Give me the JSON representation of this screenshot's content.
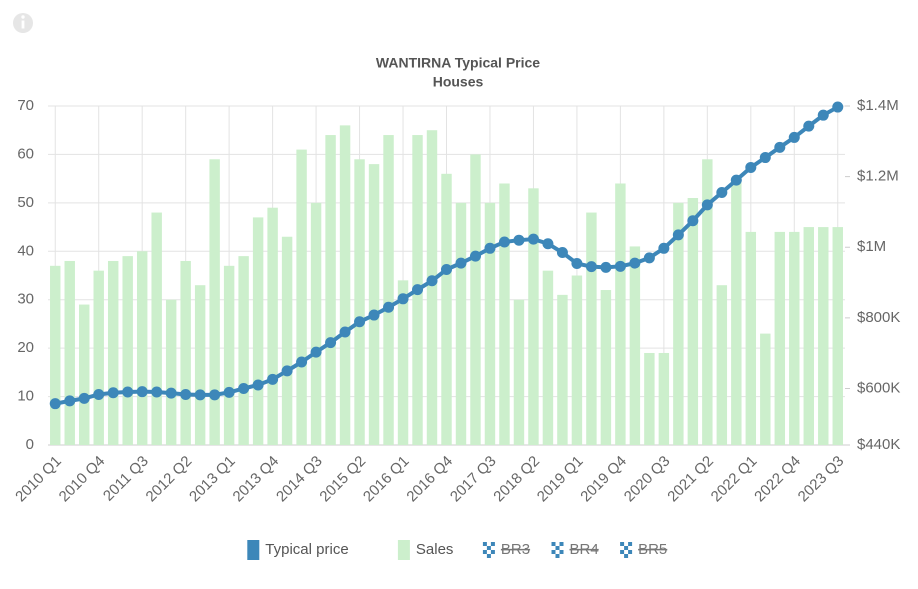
{
  "chart_data": {
    "type": "bar_line",
    "title": "WANTIRNA Typical Price",
    "subtitle": "Houses",
    "categories": [
      "2010 Q1",
      null,
      null,
      "2010 Q4",
      null,
      null,
      "2011 Q3",
      null,
      null,
      "2012 Q2",
      null,
      null,
      "2013 Q1",
      null,
      null,
      "2013 Q4",
      null,
      null,
      "2014 Q3",
      null,
      null,
      "2015 Q2",
      null,
      null,
      "2016 Q1",
      null,
      null,
      "2016 Q4",
      null,
      null,
      "2017 Q3",
      null,
      null,
      "2018 Q2",
      null,
      null,
      "2019 Q1",
      null,
      null,
      "2019 Q4",
      null,
      null,
      "2020 Q3",
      null,
      null,
      "2021 Q2",
      null,
      null,
      "2022 Q1",
      null,
      null,
      "2022 Q4",
      null,
      null,
      "2023 Q3"
    ],
    "series": [
      {
        "name": "Typical price",
        "color": "#3d87b9",
        "kind": "line",
        "axis": "y2",
        "values": [
          557000,
          565000,
          572000,
          583000,
          588000,
          590000,
          591000,
          590000,
          587000,
          583000,
          582000,
          582000,
          589000,
          600000,
          610000,
          626000,
          650000,
          675000,
          703000,
          730000,
          760000,
          789000,
          808000,
          830000,
          854000,
          880000,
          905000,
          937000,
          955000,
          975000,
          997000,
          1015000,
          1020000,
          1023000,
          1010000,
          985000,
          954000,
          945000,
          943000,
          946000,
          955000,
          970000,
          997000,
          1035000,
          1075000,
          1120000,
          1155000,
          1190000,
          1226000,
          1254000,
          1283000,
          1311000,
          1343000,
          1374000,
          1397000
        ]
      },
      {
        "name": "Sales",
        "color": "#ccefcc",
        "kind": "bar",
        "axis": "y",
        "values": [
          37,
          38,
          29,
          36,
          38,
          39,
          40,
          48,
          30,
          38,
          33,
          59,
          37,
          39,
          47,
          49,
          43,
          61,
          50,
          64,
          66,
          59,
          58,
          64,
          34,
          64,
          65,
          56,
          50,
          60,
          50,
          54,
          30,
          53,
          36,
          31,
          35,
          48,
          32,
          54,
          41,
          19,
          19,
          50,
          51,
          59,
          33,
          55,
          44,
          23,
          44,
          44,
          45,
          45,
          45
        ]
      },
      {
        "name": "BR3",
        "color": "#3d87b9",
        "hidden": true
      },
      {
        "name": "BR4",
        "color": "#3d87b9",
        "hidden": true
      },
      {
        "name": "BR5",
        "color": "#3d87b9",
        "hidden": true
      }
    ],
    "ylim": [
      0,
      70
    ],
    "yticks": [
      0,
      10,
      20,
      30,
      40,
      50,
      60,
      70
    ],
    "y2lim": [
      440000,
      1400000
    ],
    "y2ticks": [
      {
        "value": 440000,
        "label": "$440K"
      },
      {
        "value": 600000,
        "label": "$600K"
      },
      {
        "value": 800000,
        "label": "$800K"
      },
      {
        "value": 1000000,
        "label": "$1M"
      },
      {
        "value": 1200000,
        "label": "$1.2M"
      },
      {
        "value": 1400000,
        "label": "$1.4M"
      }
    ],
    "grid": true,
    "legend": "bottom"
  }
}
